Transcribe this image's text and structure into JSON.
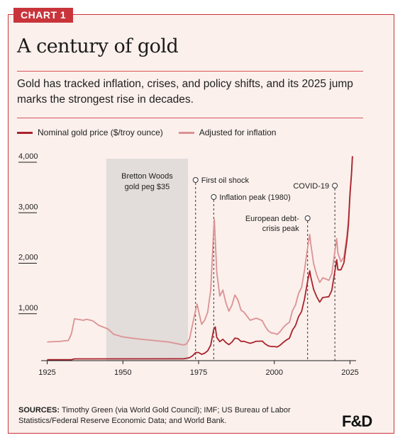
{
  "header": {
    "tag": "CHART 1",
    "title": "A century of gold",
    "subtitle": "Gold has tracked inflation, crises, and policy shifts, and its 2025 jump marks the strongest rise in decades."
  },
  "footer": {
    "sources_label": "SOURCES:",
    "sources_text": "Timothy Green (via World Gold Council); IMF; US Bureau of Labor Statistics/Federal Reserve Economic Data; and World Bank.",
    "logo": "F&D"
  },
  "colors": {
    "accent": "#c9343b",
    "nominal": "#a8232c",
    "adjusted": "#dc9294",
    "shade": "#e2dcda",
    "background": "#fbf0ec"
  },
  "chart_data": {
    "type": "line",
    "title": "A century of gold",
    "xlabel": "",
    "ylabel": "",
    "xlim": [
      1923,
      2027
    ],
    "ylim": [
      0,
      4000
    ],
    "x_ticks": [
      1925,
      1950,
      1975,
      2000,
      2025
    ],
    "y_ticks": [
      1000,
      2000,
      3000,
      4000
    ],
    "y_tick_labels": [
      "1,000",
      "2,000",
      "3,000",
      "4,000"
    ],
    "grid": false,
    "legend_position": "top-left",
    "series": [
      {
        "name": "Nominal gold price ($/troy ounce)",
        "color": "#a8232c",
        "points": [
          [
            1925,
            20
          ],
          [
            1933,
            20
          ],
          [
            1934,
            35
          ],
          [
            1970,
            36
          ],
          [
            1972,
            58
          ],
          [
            1973,
            97
          ],
          [
            1974,
            159
          ],
          [
            1975,
            161
          ],
          [
            1976,
            125
          ],
          [
            1977,
            148
          ],
          [
            1978,
            193
          ],
          [
            1979,
            307
          ],
          [
            1980,
            615
          ],
          [
            1980.5,
            670
          ],
          [
            1981,
            460
          ],
          [
            1982,
            376
          ],
          [
            1983,
            424
          ],
          [
            1984,
            360
          ],
          [
            1985,
            317
          ],
          [
            1986,
            368
          ],
          [
            1987,
            447
          ],
          [
            1988,
            437
          ],
          [
            1989,
            381
          ],
          [
            1990,
            383
          ],
          [
            1991,
            362
          ],
          [
            1992,
            344
          ],
          [
            1993,
            360
          ],
          [
            1994,
            384
          ],
          [
            1995,
            384
          ],
          [
            1996,
            388
          ],
          [
            1997,
            331
          ],
          [
            1998,
            294
          ],
          [
            1999,
            279
          ],
          [
            2000,
            279
          ],
          [
            2001,
            271
          ],
          [
            2002,
            310
          ],
          [
            2003,
            363
          ],
          [
            2004,
            409
          ],
          [
            2005,
            445
          ],
          [
            2006,
            604
          ],
          [
            2007,
            695
          ],
          [
            2008,
            872
          ],
          [
            2009,
            972
          ],
          [
            2010,
            1225
          ],
          [
            2011,
            1572
          ],
          [
            2011.7,
            1780
          ],
          [
            2012,
            1669
          ],
          [
            2013,
            1411
          ],
          [
            2014,
            1266
          ],
          [
            2015,
            1160
          ],
          [
            2016,
            1250
          ],
          [
            2017,
            1257
          ],
          [
            2018,
            1268
          ],
          [
            2019,
            1393
          ],
          [
            2020,
            1770
          ],
          [
            2020.6,
            2000
          ],
          [
            2021,
            1800
          ],
          [
            2022,
            1800
          ],
          [
            2023,
            1940
          ],
          [
            2024,
            2390
          ],
          [
            2024.5,
            2700
          ],
          [
            2025,
            3300
          ],
          [
            2025.5,
            3700
          ],
          [
            2025.8,
            4050
          ]
        ]
      },
      {
        "name": "Adjusted for inflation",
        "color": "#dc9294",
        "points": [
          [
            1925,
            370
          ],
          [
            1929,
            380
          ],
          [
            1932,
            400
          ],
          [
            1933,
            530
          ],
          [
            1934,
            830
          ],
          [
            1935,
            820
          ],
          [
            1937,
            800
          ],
          [
            1938,
            820
          ],
          [
            1940,
            790
          ],
          [
            1942,
            700
          ],
          [
            1945,
            630
          ],
          [
            1947,
            520
          ],
          [
            1950,
            470
          ],
          [
            1955,
            430
          ],
          [
            1960,
            400
          ],
          [
            1965,
            370
          ],
          [
            1970,
            310
          ],
          [
            1971,
            330
          ],
          [
            1972,
            430
          ],
          [
            1973,
            720
          ],
          [
            1974,
            1000
          ],
          [
            1974.5,
            1120
          ],
          [
            1975,
            980
          ],
          [
            1976,
            720
          ],
          [
            1977,
            800
          ],
          [
            1978,
            960
          ],
          [
            1979,
            1400
          ],
          [
            1980,
            2600
          ],
          [
            1980.2,
            2800
          ],
          [
            1981,
            1750
          ],
          [
            1982,
            1280
          ],
          [
            1983,
            1400
          ],
          [
            1984,
            1150
          ],
          [
            1985,
            980
          ],
          [
            1986,
            1100
          ],
          [
            1987,
            1300
          ],
          [
            1988,
            1200
          ],
          [
            1989,
            1000
          ],
          [
            1990,
            960
          ],
          [
            1991,
            880
          ],
          [
            1992,
            800
          ],
          [
            1993,
            820
          ],
          [
            1994,
            840
          ],
          [
            1995,
            820
          ],
          [
            1996,
            790
          ],
          [
            1997,
            680
          ],
          [
            1998,
            590
          ],
          [
            1999,
            550
          ],
          [
            2000,
            540
          ],
          [
            2001,
            520
          ],
          [
            2002,
            580
          ],
          [
            2003,
            660
          ],
          [
            2004,
            720
          ],
          [
            2005,
            760
          ],
          [
            2006,
            990
          ],
          [
            2007,
            1100
          ],
          [
            2008,
            1330
          ],
          [
            2009,
            1450
          ],
          [
            2010,
            1800
          ],
          [
            2011,
            2240
          ],
          [
            2011.7,
            2500
          ],
          [
            2012,
            2330
          ],
          [
            2013,
            1920
          ],
          [
            2014,
            1700
          ],
          [
            2015,
            1550
          ],
          [
            2016,
            1640
          ],
          [
            2017,
            1620
          ],
          [
            2018,
            1590
          ],
          [
            2019,
            1720
          ],
          [
            2020,
            2160
          ],
          [
            2020.6,
            2420
          ],
          [
            2021,
            2130
          ],
          [
            2022,
            1960
          ],
          [
            2023,
            2050
          ],
          [
            2024,
            2480
          ],
          [
            2024.5,
            2800
          ],
          [
            2025,
            3350
          ],
          [
            2025.5,
            3720
          ],
          [
            2025.8,
            4050
          ]
        ]
      }
    ],
    "shaded_region": {
      "x": [
        1944.5,
        1971.5
      ],
      "label_lines": [
        "Bretton Woods",
        "gold peg $35"
      ]
    },
    "annotations": [
      {
        "label": "First oil shock",
        "x": 1974,
        "anchor": "right"
      },
      {
        "label": "Inflation peak (1980)",
        "x": 1980,
        "anchor": "right"
      },
      {
        "label_lines": [
          "European debt-",
          "crisis peak"
        ],
        "x": 2011,
        "anchor": "left"
      },
      {
        "label": "COVID-19",
        "x": 2020,
        "anchor": "left"
      }
    ]
  }
}
